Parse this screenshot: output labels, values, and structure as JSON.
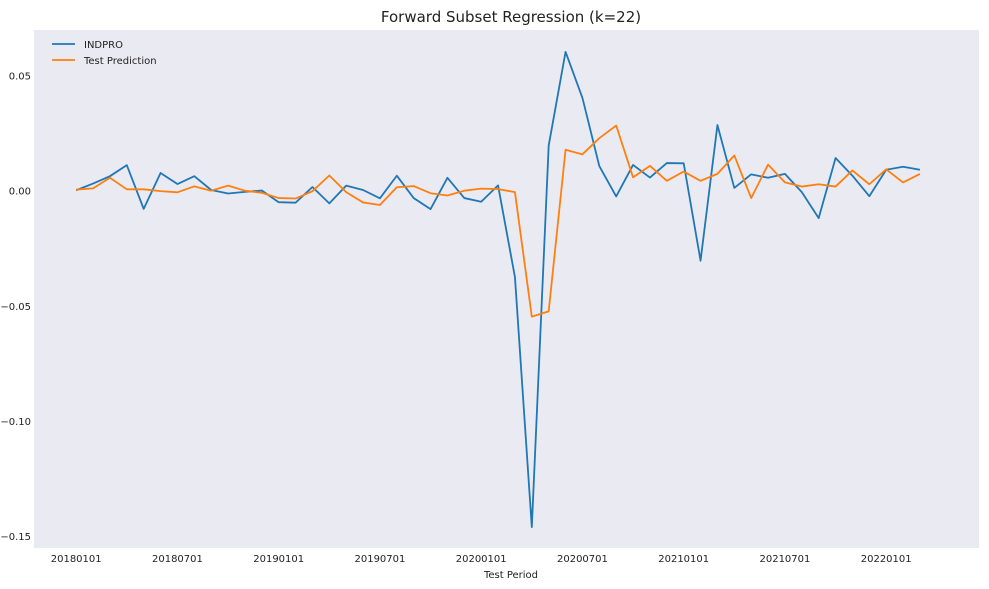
{
  "chart_data": {
    "type": "line",
    "title": "Forward Subset Regression (k=22)",
    "xlabel": "Test Period",
    "ylabel": "",
    "ylim": [
      -0.155,
      0.07
    ],
    "xlim_index": [
      -2.5,
      53.5
    ],
    "grid": false,
    "legend_position": "top-left",
    "background": "#eaeaf2",
    "x_ticks": [
      {
        "index": 0,
        "label": "20180101"
      },
      {
        "index": 6,
        "label": "20180701"
      },
      {
        "index": 12,
        "label": "20190101"
      },
      {
        "index": 18,
        "label": "20190701"
      },
      {
        "index": 24,
        "label": "20200101"
      },
      {
        "index": 30,
        "label": "20200701"
      },
      {
        "index": 36,
        "label": "20210101"
      },
      {
        "index": 42,
        "label": "20210701"
      },
      {
        "index": 48,
        "label": "20220101"
      }
    ],
    "y_ticks": [
      {
        "value": 0.05,
        "label": "0.05"
      },
      {
        "value": 0.0,
        "label": "0.00"
      },
      {
        "value": -0.05,
        "label": "−0.05"
      },
      {
        "value": -0.1,
        "label": "−0.10"
      },
      {
        "value": -0.15,
        "label": "−0.15"
      }
    ],
    "series": [
      {
        "name": "INDPRO",
        "color": "#1f77b4",
        "values": [
          0.0004,
          0.0033,
          0.0065,
          0.0113,
          -0.0077,
          0.0079,
          0.0031,
          0.0065,
          0.0005,
          -0.001,
          -0.0003,
          0.0003,
          -0.0048,
          -0.005,
          0.0018,
          -0.0053,
          0.0024,
          0.0005,
          -0.0031,
          0.0067,
          -0.003,
          -0.0078,
          0.0058,
          -0.003,
          -0.0046,
          0.0025,
          -0.0373,
          -0.1459,
          0.0198,
          0.0605,
          0.0405,
          0.0109,
          -0.0023,
          0.0114,
          0.0059,
          0.0122,
          0.0121,
          -0.0302,
          0.0287,
          0.0014,
          0.0073,
          0.0058,
          0.0075,
          -0.0004,
          -0.0117,
          0.0144,
          0.0067,
          -0.0022,
          0.0093,
          0.0106,
          0.0093
        ]
      },
      {
        "name": "Test Prediction",
        "color": "#ff7f0e",
        "values": [
          0.0007,
          0.0012,
          0.0058,
          0.0008,
          0.0008,
          0.0,
          -0.0005,
          0.0021,
          0.0002,
          0.0024,
          0.0002,
          -0.0007,
          -0.003,
          -0.0032,
          0.0,
          0.0068,
          -0.0004,
          -0.0049,
          -0.006,
          0.0017,
          0.0022,
          -0.0009,
          -0.0019,
          0.0002,
          0.0011,
          0.0009,
          -0.0004,
          -0.0545,
          -0.0522,
          0.018,
          0.016,
          0.023,
          0.0285,
          0.006,
          0.011,
          0.0045,
          0.0085,
          0.0045,
          0.0075,
          0.0155,
          -0.003,
          0.0115,
          0.0038,
          0.002,
          0.003,
          0.002,
          0.009,
          0.003,
          0.0095,
          0.0038,
          0.0075
        ]
      }
    ]
  }
}
